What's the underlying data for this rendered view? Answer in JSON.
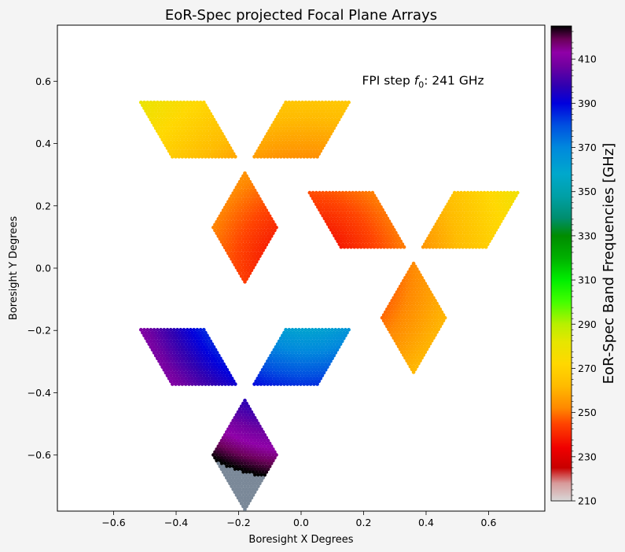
{
  "chart_data": {
    "type": "scatter",
    "title": "EoR-Spec projected Focal Plane Arrays",
    "xlabel": "Boresight X Degrees",
    "ylabel": "Boresight Y Degrees",
    "xlim": [
      -0.78,
      0.78
    ],
    "ylim": [
      -0.78,
      0.78
    ],
    "x_ticks": [
      "−0.6",
      "−0.4",
      "−0.2",
      "0.0",
      "0.2",
      "0.4",
      "0.6"
    ],
    "y_ticks": [
      "−0.6",
      "−0.4",
      "−0.2",
      "0.0",
      "0.2",
      "0.4",
      "0.6"
    ],
    "annotation": {
      "prefix": "FPI step ",
      "symbol": "f",
      "subscript": "0",
      "suffix": ": 241 GHz",
      "x": 0.195,
      "y": 0.59
    },
    "colorbar": {
      "label": "EoR-Spec Band Frequencies [GHz]",
      "range": [
        210,
        425
      ],
      "ticks": [
        "210",
        "230",
        "250",
        "270",
        "290",
        "310",
        "330",
        "350",
        "370",
        "390",
        "410"
      ]
    },
    "arrays": [
      {
        "name": "upper-left",
        "center": [
          -0.18,
          0.34
        ],
        "freq_range": [
          235,
          283
        ]
      },
      {
        "name": "right",
        "center": [
          0.36,
          0.05
        ],
        "freq_range": [
          235,
          283
        ]
      },
      {
        "name": "bottom",
        "center": [
          -0.18,
          -0.39
        ],
        "freq_range": [
          350,
          425
        ]
      }
    ],
    "colors": {
      "no_data": "#7a8898",
      "cmap_stops": [
        [
          210,
          "#d8d8d8"
        ],
        [
          218,
          "#d89a9a"
        ],
        [
          225,
          "#c80000"
        ],
        [
          234,
          "#f00000"
        ],
        [
          245,
          "#ff4400"
        ],
        [
          252,
          "#ff8800"
        ],
        [
          262,
          "#ffbb00"
        ],
        [
          272,
          "#ffd800"
        ],
        [
          282,
          "#e6e600"
        ],
        [
          290,
          "#b8f000"
        ],
        [
          300,
          "#44ff00"
        ],
        [
          310,
          "#00ee00"
        ],
        [
          320,
          "#00b000"
        ],
        [
          330,
          "#008c00"
        ],
        [
          338,
          "#008e6e"
        ],
        [
          348,
          "#00a0a6"
        ],
        [
          358,
          "#00a8cc"
        ],
        [
          370,
          "#0088dd"
        ],
        [
          380,
          "#0050e0"
        ],
        [
          390,
          "#0000dd"
        ],
        [
          398,
          "#3000b0"
        ],
        [
          407,
          "#7000a0"
        ],
        [
          413,
          "#9000a8"
        ],
        [
          419,
          "#6a0058"
        ],
        [
          425,
          "#000000"
        ]
      ]
    }
  }
}
